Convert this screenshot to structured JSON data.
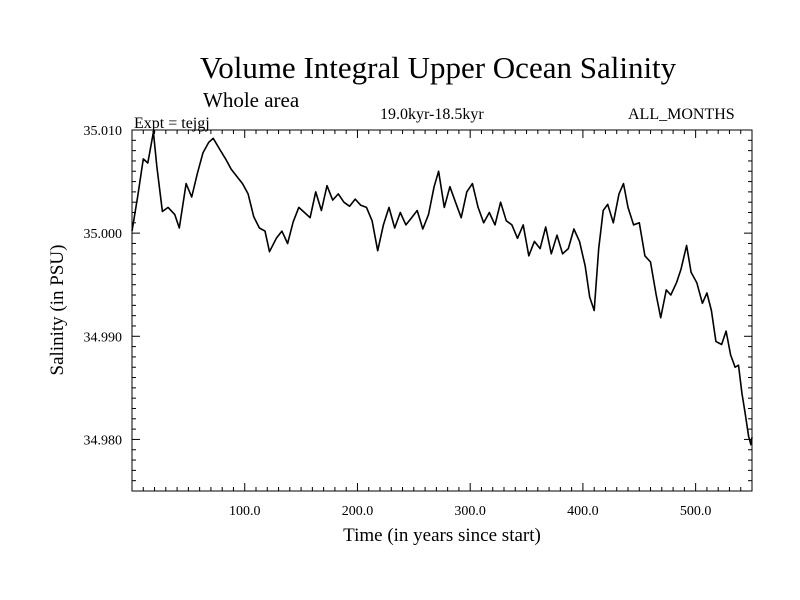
{
  "header": {
    "title": "Volume Integral Upper Ocean Salinity",
    "subtitle": "Whole area",
    "experiment": "Expt = tejgj",
    "period": "19.0kyr-18.5kyr",
    "months": "ALL_MONTHS"
  },
  "chart_data": {
    "type": "line",
    "title": "Volume Integral Upper Ocean Salinity",
    "subtitle": "Whole area",
    "xlabel": "Time (in years since start)",
    "ylabel": "Salinity (in PSU)",
    "xlim": [
      0,
      550
    ],
    "ylim": [
      34.975,
      35.01
    ],
    "x_ticks": [
      100,
      200,
      300,
      400,
      500
    ],
    "x_tick_labels": [
      "100.0",
      "200.0",
      "300.0",
      "400.0",
      "500.0"
    ],
    "y_ticks": [
      34.98,
      34.99,
      35.0,
      35.01
    ],
    "y_tick_labels": [
      "34.980",
      "34.990",
      "35.000",
      "35.010"
    ],
    "grid": false,
    "line_color": "#000000",
    "series": [
      {
        "name": "tejgj",
        "points": [
          [
            0,
            35.0002
          ],
          [
            5,
            35.0035
          ],
          [
            10,
            35.0072
          ],
          [
            14,
            35.0068
          ],
          [
            19,
            35.0098
          ],
          [
            22,
            35.0065
          ],
          [
            27,
            35.0021
          ],
          [
            32,
            35.0025
          ],
          [
            38,
            35.0018
          ],
          [
            42,
            35.0005
          ],
          [
            48,
            35.0048
          ],
          [
            53,
            35.0035
          ],
          [
            58,
            35.0058
          ],
          [
            63,
            35.0078
          ],
          [
            68,
            35.0088
          ],
          [
            72,
            35.0092
          ],
          [
            78,
            35.0081
          ],
          [
            83,
            35.0072
          ],
          [
            88,
            35.0062
          ],
          [
            93,
            35.0055
          ],
          [
            98,
            35.0048
          ],
          [
            103,
            35.0038
          ],
          [
            108,
            35.0016
          ],
          [
            113,
            35.0005
          ],
          [
            118,
            35.0002
          ],
          [
            122,
            34.9982
          ],
          [
            128,
            34.9995
          ],
          [
            133,
            35.0002
          ],
          [
            138,
            34.999
          ],
          [
            143,
            35.0011
          ],
          [
            148,
            35.0025
          ],
          [
            153,
            35.002
          ],
          [
            158,
            35.0015
          ],
          [
            163,
            35.004
          ],
          [
            168,
            35.0022
          ],
          [
            173,
            35.0046
          ],
          [
            178,
            35.0032
          ],
          [
            183,
            35.0038
          ],
          [
            188,
            35.003
          ],
          [
            193,
            35.0026
          ],
          [
            198,
            35.0033
          ],
          [
            203,
            35.0027
          ],
          [
            208,
            35.0025
          ],
          [
            213,
            35.0012
          ],
          [
            218,
            34.9983
          ],
          [
            223,
            35.0008
          ],
          [
            228,
            35.0025
          ],
          [
            233,
            35.0005
          ],
          [
            238,
            35.002
          ],
          [
            243,
            35.0008
          ],
          [
            248,
            35.0015
          ],
          [
            253,
            35.0022
          ],
          [
            258,
            35.0004
          ],
          [
            263,
            35.0018
          ],
          [
            268,
            35.0045
          ],
          [
            272,
            35.006
          ],
          [
            277,
            35.0025
          ],
          [
            282,
            35.0045
          ],
          [
            287,
            35.003
          ],
          [
            292,
            35.0015
          ],
          [
            297,
            35.004
          ],
          [
            302,
            35.0048
          ],
          [
            307,
            35.0025
          ],
          [
            312,
            35.001
          ],
          [
            317,
            35.002
          ],
          [
            322,
            35.0008
          ],
          [
            327,
            35.003
          ],
          [
            332,
            35.0012
          ],
          [
            337,
            35.0008
          ],
          [
            342,
            34.9995
          ],
          [
            347,
            35.0008
          ],
          [
            352,
            34.9978
          ],
          [
            357,
            34.9992
          ],
          [
            362,
            34.9985
          ],
          [
            367,
            35.0006
          ],
          [
            372,
            34.998
          ],
          [
            377,
            34.9998
          ],
          [
            382,
            34.998
          ],
          [
            387,
            34.9985
          ],
          [
            392,
            35.0004
          ],
          [
            397,
            34.9992
          ],
          [
            402,
            34.9968
          ],
          [
            406,
            34.9938
          ],
          [
            410,
            34.9925
          ],
          [
            414,
            34.9985
          ],
          [
            418,
            35.0022
          ],
          [
            422,
            35.0028
          ],
          [
            427,
            35.001
          ],
          [
            432,
            35.0038
          ],
          [
            436,
            35.0048
          ],
          [
            440,
            35.0025
          ],
          [
            445,
            35.0008
          ],
          [
            450,
            35.001
          ],
          [
            455,
            34.9978
          ],
          [
            460,
            34.9972
          ],
          [
            465,
            34.994
          ],
          [
            469,
            34.9918
          ],
          [
            474,
            34.9945
          ],
          [
            478,
            34.994
          ],
          [
            483,
            34.9952
          ],
          [
            487,
            34.9965
          ],
          [
            492,
            34.9988
          ],
          [
            496,
            34.9962
          ],
          [
            501,
            34.9952
          ],
          [
            506,
            34.9932
          ],
          [
            510,
            34.9942
          ],
          [
            514,
            34.9925
          ],
          [
            518,
            34.9895
          ],
          [
            523,
            34.9892
          ],
          [
            527,
            34.9905
          ],
          [
            531,
            34.9882
          ],
          [
            535,
            34.987
          ],
          [
            538,
            34.9872
          ],
          [
            541,
            34.9845
          ],
          [
            544,
            34.9825
          ],
          [
            547,
            34.9803
          ],
          [
            549,
            34.9795
          ],
          [
            550,
            34.9802
          ]
        ]
      }
    ]
  }
}
